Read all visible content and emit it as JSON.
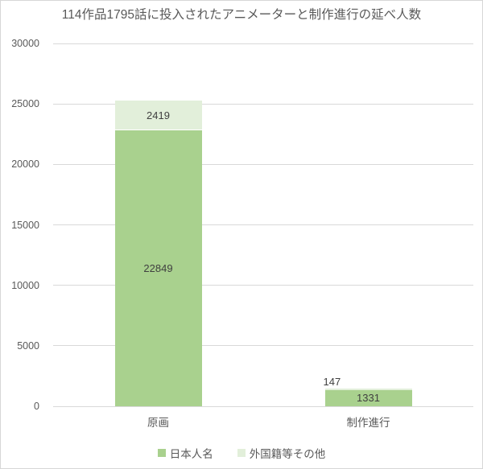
{
  "chart_data": {
    "type": "bar",
    "stacked": true,
    "title": "114作品1795話に投入されたアニメーターと制作進行の延べ人数",
    "categories": [
      "原画",
      "制作進行"
    ],
    "series": [
      {
        "name": "日本人名",
        "color": "#A9D18E",
        "values": [
          22849,
          1331
        ]
      },
      {
        "name": "外国籍等その他",
        "color": "#E2EFDA",
        "values": [
          2419,
          147
        ]
      }
    ],
    "totals": [
      25268,
      1478
    ],
    "xlabel": "",
    "ylabel": "",
    "ylim": [
      0,
      30000
    ],
    "yticks": [
      0,
      5000,
      10000,
      15000,
      20000,
      25000,
      30000
    ],
    "grid": true,
    "legend_position": "bottom",
    "colors": {
      "gridline": "#D9D9D9",
      "axis_text": "#595959",
      "data_label": "#404040",
      "chart_border": "#D7D7D7",
      "background": "#FFFFFF"
    }
  }
}
